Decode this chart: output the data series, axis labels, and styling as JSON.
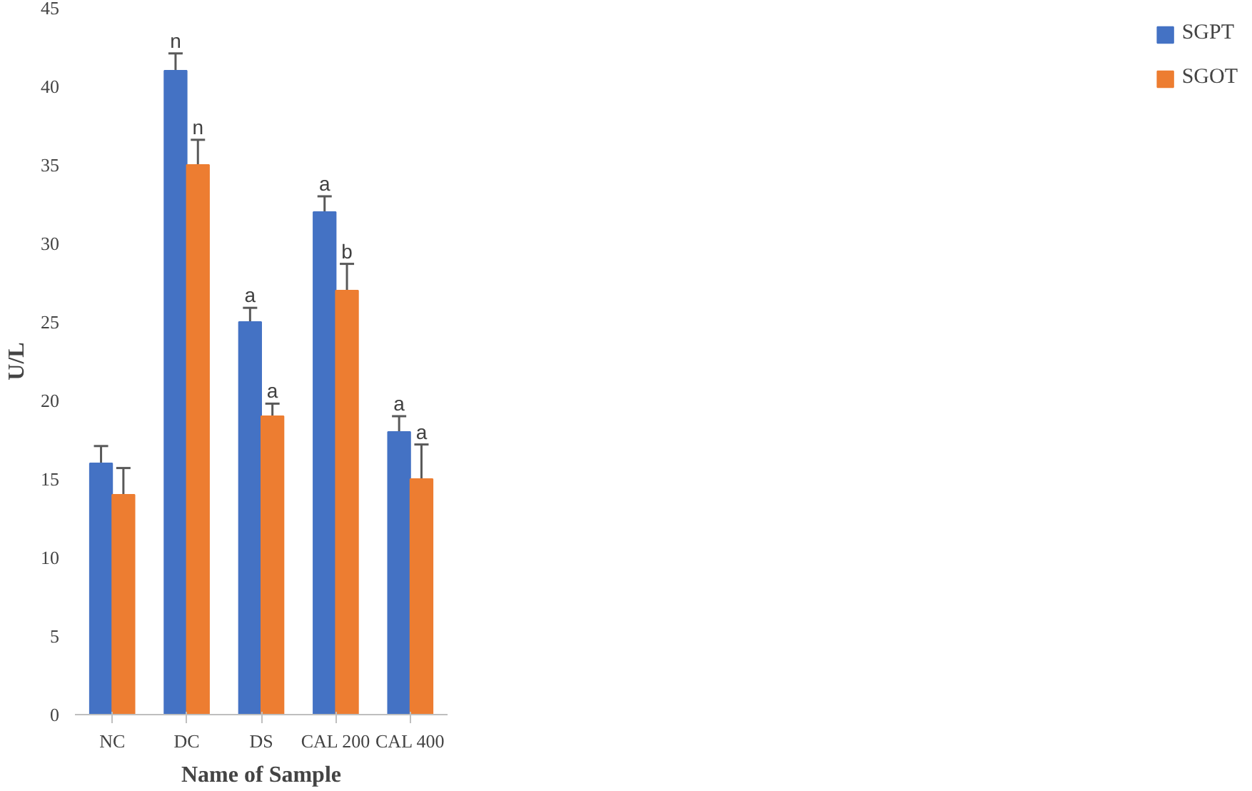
{
  "chart_data": {
    "type": "bar",
    "xlabel": "Name of Sample",
    "ylabel": "U/L",
    "categories": [
      "NC",
      "DC",
      "DS",
      "CAL 200",
      "CAL 400"
    ],
    "series": [
      {
        "name": "SGPT",
        "color": "#4472c4",
        "values": [
          16,
          41,
          25,
          32,
          18
        ],
        "errors": [
          [
            16,
            17.1
          ],
          [
            41,
            42.1
          ],
          [
            25,
            25.9
          ],
          [
            32,
            33
          ],
          [
            18,
            19
          ]
        ],
        "value_labels": [
          null,
          "n",
          "a",
          "a",
          "a"
        ]
      },
      {
        "name": "SGOT",
        "color": "#ed7d31",
        "values": [
          14,
          35,
          19,
          27,
          15
        ],
        "errors": [
          [
            14,
            15.7
          ],
          [
            35,
            36.6
          ],
          [
            19,
            19.8
          ],
          [
            27,
            28.7
          ],
          [
            15,
            17.2
          ]
        ],
        "value_labels": [
          null,
          "n",
          "a",
          "b",
          "a"
        ]
      }
    ],
    "ylim": [
      0,
      45
    ],
    "yticks": [
      0,
      5,
      10,
      15,
      20,
      25,
      30,
      35,
      40,
      45
    ],
    "grid": false,
    "legend": "right"
  }
}
